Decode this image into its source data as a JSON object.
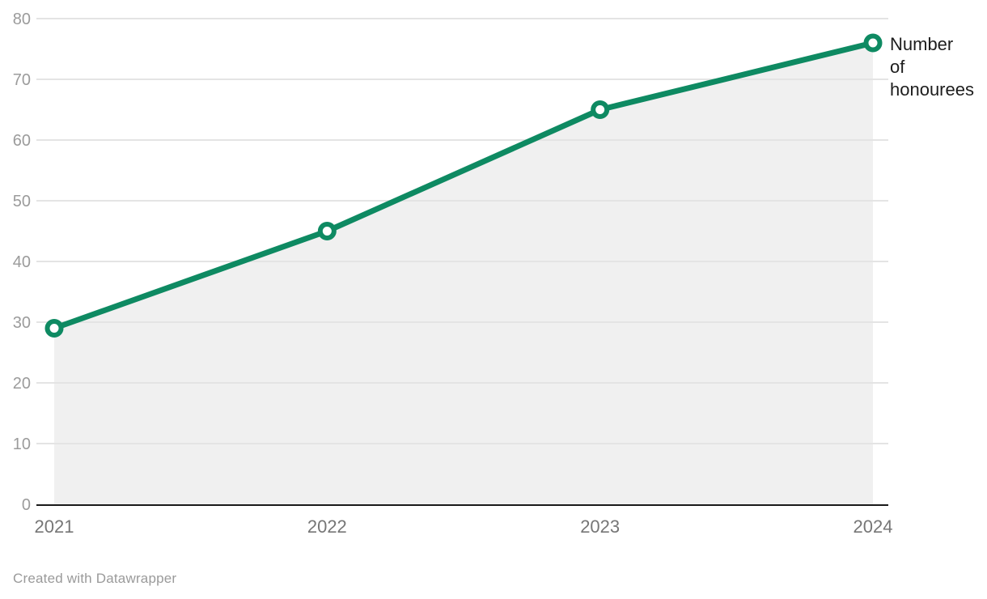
{
  "chart_data": {
    "type": "line",
    "title": "",
    "x": [
      "2021",
      "2022",
      "2023",
      "2024"
    ],
    "series": [
      {
        "name": "Number of honourees",
        "values": [
          29,
          45,
          65,
          76
        ]
      }
    ],
    "xlabel": "",
    "ylabel": "",
    "ylim": [
      0,
      80
    ],
    "yticks": [
      0,
      10,
      20,
      30,
      40,
      50,
      60,
      70,
      80
    ],
    "grid": "horizontal",
    "area_fill": true,
    "legend_position": "line-end-label",
    "annotation": {
      "label": "Number of honourees",
      "lines": [
        "Number",
        "of",
        "honourees"
      ]
    },
    "colors": {
      "line": "#0e8a62",
      "marker_fill": "#ffffff",
      "area": "#f0f0f0",
      "grid": "#e4e4e4",
      "axis_line": "#1a1a1a",
      "y_tick_label": "#9b9b9b",
      "x_tick_label": "#767676",
      "annotation_text": "#1d1d1d"
    }
  },
  "footer": {
    "attribution": "Created with Datawrapper"
  }
}
